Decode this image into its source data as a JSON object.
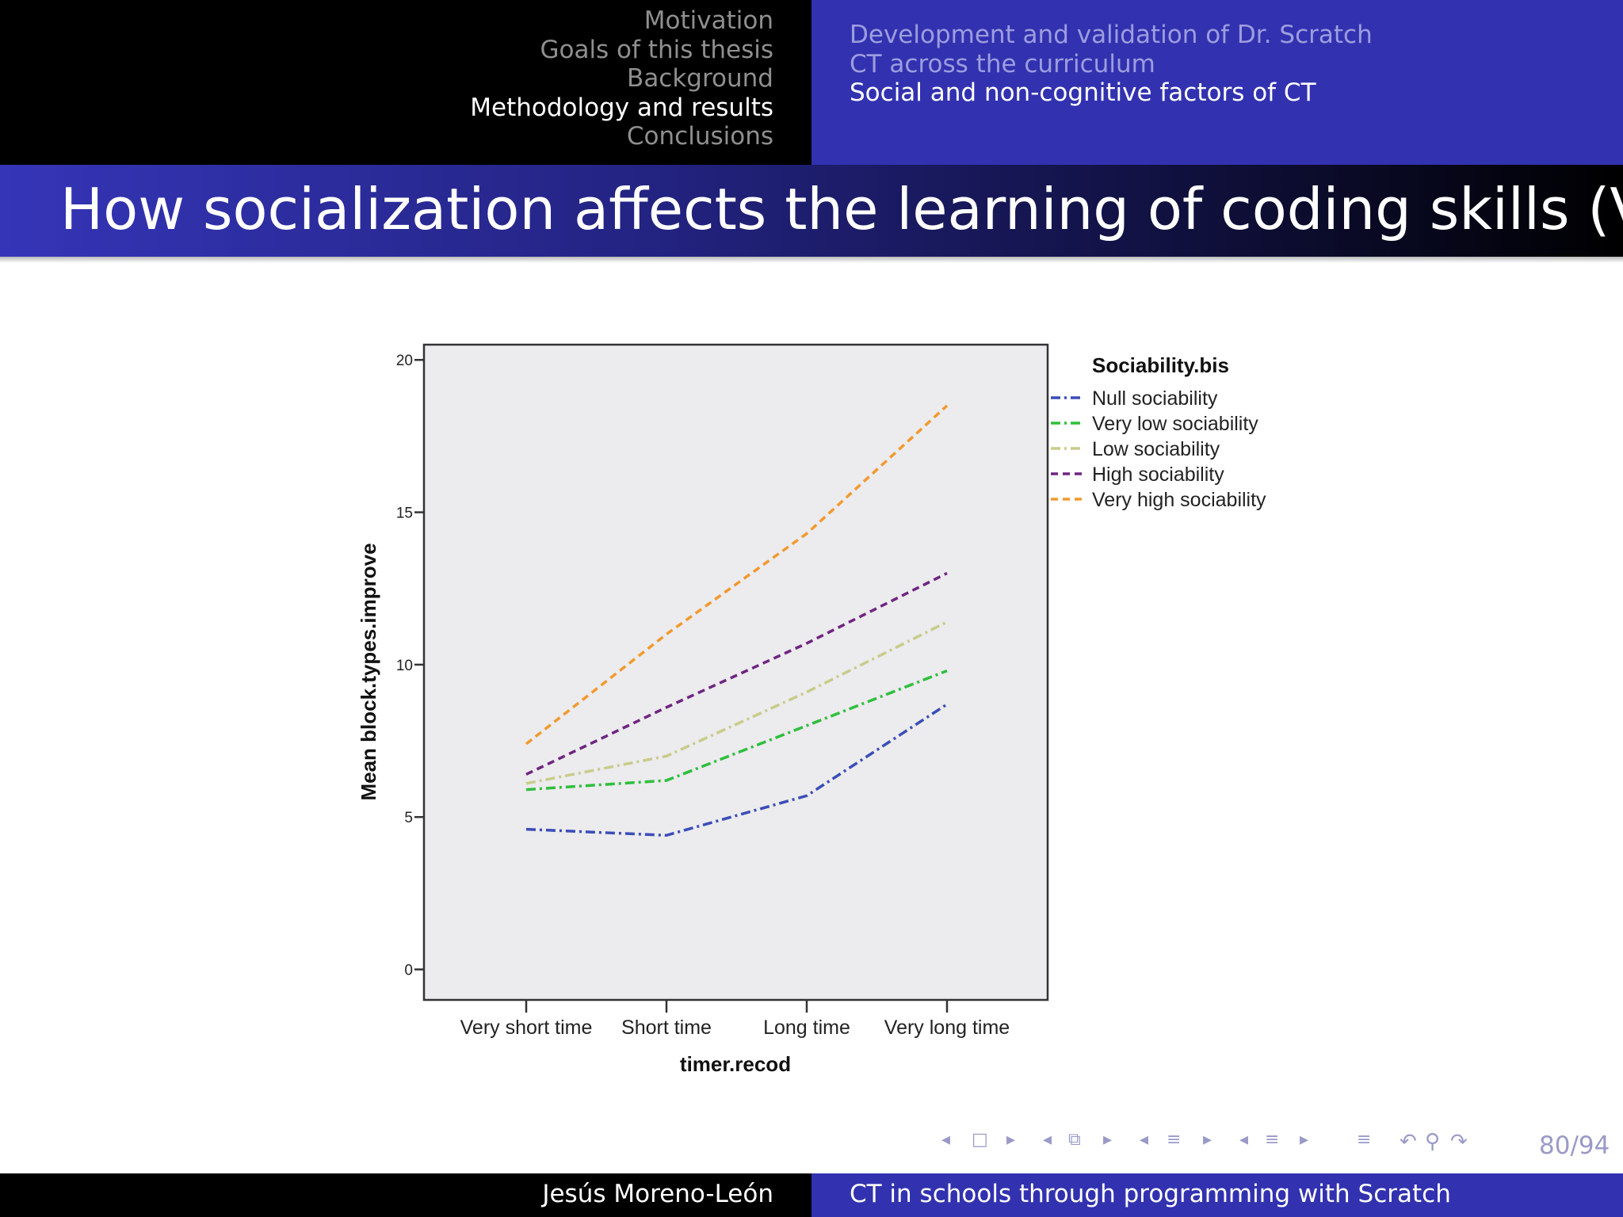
{
  "header": {
    "sections": [
      "Motivation",
      "Goals of this thesis",
      "Background",
      "Methodology and results",
      "Conclusions"
    ],
    "active_section": 3,
    "subsections": [
      "Development and validation of Dr. Scratch",
      "CT across the curriculum",
      "Social and non-cognitive factors of CT"
    ],
    "active_subsection": 2
  },
  "slide": {
    "title": "How socialization affects the learning of coding skills (VI)"
  },
  "chart_data": {
    "type": "line",
    "xlabel": "timer.recod",
    "ylabel": "Mean block.types.improve",
    "categories": [
      "Very short time",
      "Short time",
      "Long time",
      "Very long time"
    ],
    "ylim": [
      -1,
      20.5
    ],
    "yticks": [
      0,
      5,
      10,
      15,
      20
    ],
    "grid": false,
    "legend": {
      "title": "Sociability.bis",
      "position": "right"
    },
    "series": [
      {
        "name": "Null sociability",
        "values": [
          4.6,
          4.4,
          5.7,
          8.7
        ],
        "color": "#3a4db8",
        "dash": "dashdot"
      },
      {
        "name": "Very low sociability",
        "values": [
          5.9,
          6.2,
          8.0,
          9.8
        ],
        "color": "#2ebf3c",
        "dash": "dashdot"
      },
      {
        "name": "Low sociability",
        "values": [
          6.1,
          7.0,
          9.1,
          11.4
        ],
        "color": "#c9cc8a",
        "dash": "dashdot"
      },
      {
        "name": "High sociability",
        "values": [
          6.4,
          8.6,
          10.7,
          13.0
        ],
        "color": "#6e2580",
        "dash": "dash"
      },
      {
        "name": "Very high sociability",
        "values": [
          7.4,
          11.0,
          14.3,
          18.5
        ],
        "color": "#f29a2e",
        "dash": "dash"
      }
    ]
  },
  "navigation": {
    "page": "80/94",
    "symbols": [
      "◂",
      "□",
      "▸",
      "◂",
      "⧉",
      "▸",
      "◂",
      "≡",
      "▸",
      "◂",
      "≡",
      "▸",
      "≡",
      "↶",
      "⚲",
      "↷"
    ]
  },
  "footer": {
    "author": "Jesús Moreno-León",
    "short_title": "CT in schools through programming with Scratch"
  }
}
